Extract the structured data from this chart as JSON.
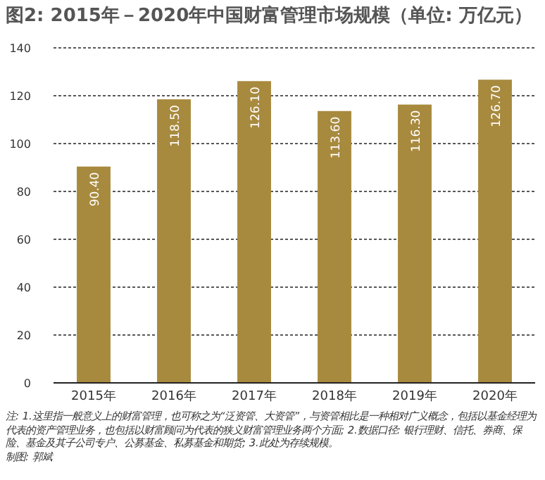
{
  "chart_data": {
    "type": "bar",
    "title": "图2: 2015年－2020年中国财富管理市场规模（单位: 万亿元）",
    "categories": [
      "2015年",
      "2016年",
      "2017年",
      "2018年",
      "2019年",
      "2020年"
    ],
    "values": [
      90.4,
      118.5,
      126.1,
      113.6,
      116.3,
      126.7
    ],
    "value_labels": [
      "90.40",
      "118.50",
      "126.10",
      "113.60",
      "116.30",
      "126.70"
    ],
    "color": "#a88a3e",
    "ylim": [
      0,
      140
    ],
    "yticks": [
      0,
      20,
      40,
      60,
      80,
      100,
      120,
      140
    ],
    "grid": "y",
    "annotations": [
      "注: 1.这里指一般意义上的财富管理，也可称之为“泛资管、大资管”，与资管相比是一种相对广义概念，包括以基金经理为代表的资产管理业务，也包括以财富顾问为代表的狭义财富管理业务两个方面; 2.数据口径: 银行理财、信托、券商、保险、基金及其子公司专户、公募基金、私募基金和期货; 3.此处为存续规模。",
      "制图: 郭斌"
    ]
  }
}
